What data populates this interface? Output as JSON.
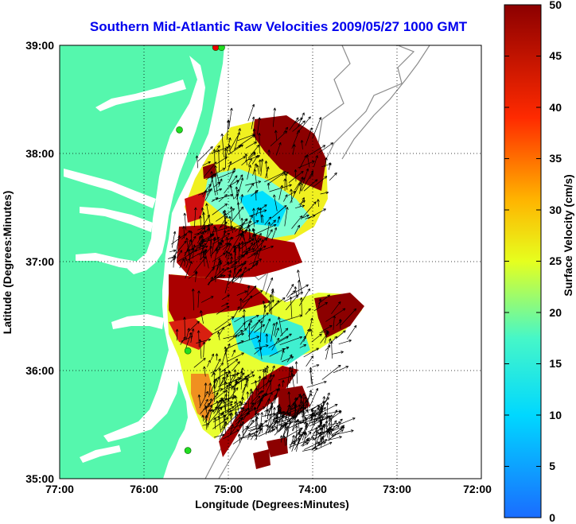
{
  "title": "Southern Mid-Atlantic Raw Velocities 2009/05/27 1000 GMT",
  "axes": {
    "xlabel": "Longitude (Degrees:Minutes)",
    "ylabel": "Latitude (Degrees:Minutes)",
    "x_ticks": [
      "77:00",
      "76:00",
      "75:00",
      "74:00",
      "73:00",
      "72:00"
    ],
    "y_ticks": [
      "39:00",
      "38:00",
      "37:00",
      "36:00",
      "35:00"
    ],
    "xlim": [
      -77,
      -72
    ],
    "ylim": [
      35,
      39
    ],
    "grid": true
  },
  "colorbar": {
    "label": "Surface Velocity (cm/s)",
    "ticks": [
      "50",
      "45",
      "40",
      "35",
      "30",
      "25",
      "20",
      "15",
      "10",
      "5",
      "0"
    ],
    "range": [
      0,
      50
    ]
  },
  "colors": {
    "land": "#55f7ad",
    "water": "#ffffff",
    "title": "#0000ee",
    "bathymetry": "#8c8c8c",
    "station_green": "#22dd22",
    "station_red": "#ee0000"
  },
  "stations": [
    {
      "lon": -75.15,
      "lat": 38.98,
      "color": "red"
    },
    {
      "lon": -75.08,
      "lat": 38.98,
      "color": "green"
    },
    {
      "lon": -75.58,
      "lat": 38.22,
      "color": "green"
    },
    {
      "lon": -75.48,
      "lat": 36.18,
      "color": "green"
    },
    {
      "lon": -75.48,
      "lat": 35.26,
      "color": "green"
    }
  ]
}
